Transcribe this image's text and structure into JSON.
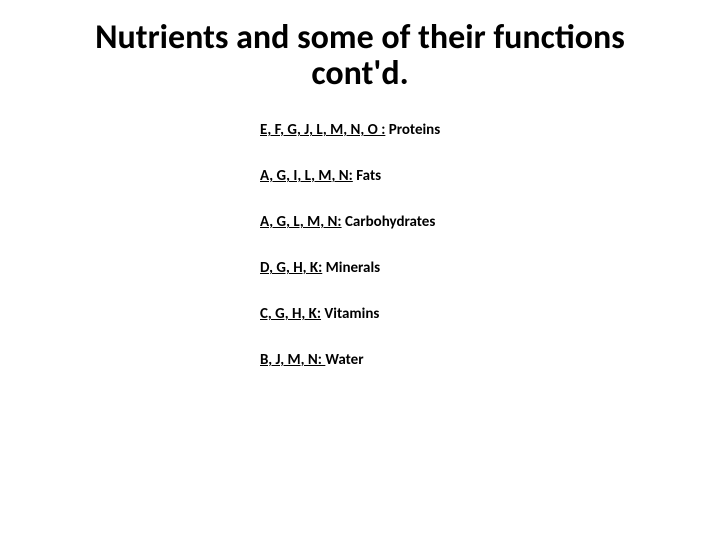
{
  "title_line1": "Nutrients and some of their functions",
  "title_line2": "cont'd.",
  "title_fontsize": 34,
  "title_color": "#000000",
  "items": [
    {
      "letters": "E, F, G, J, L, M, N, O :",
      "label": " Proteins"
    },
    {
      "letters": "A, G, I, L, M, N:",
      "label": " Fats"
    },
    {
      "letters": "A, G, L, M, N:",
      "label": "  Carbohydrates"
    },
    {
      "letters": "D, G, H, K:",
      "label": " Minerals"
    },
    {
      "letters": "C, G, H, K:",
      "label": " Vitamins"
    },
    {
      "letters": "B, J, M, N: ",
      "label": "Water"
    }
  ],
  "item_fontsize": 15,
  "item_color": "#000000",
  "background_color": "#ffffff"
}
